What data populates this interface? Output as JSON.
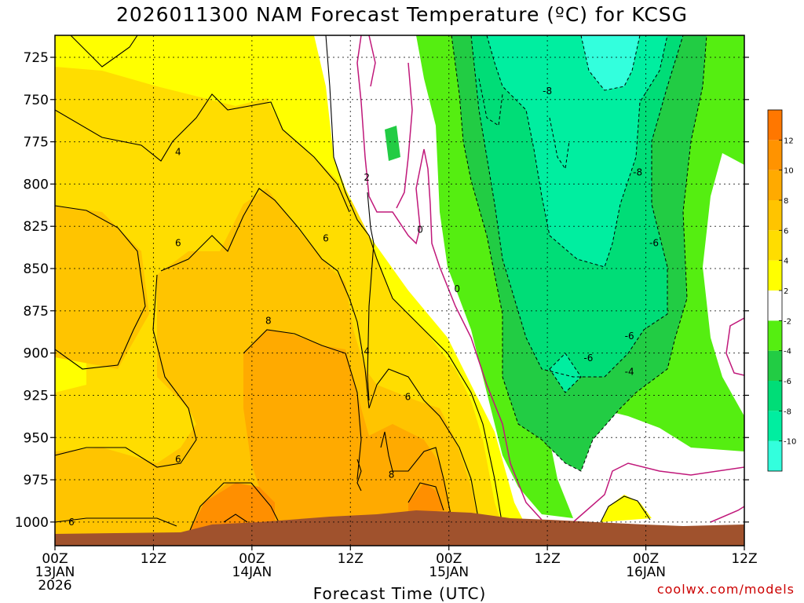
{
  "title": "2026011300 NAM Forecast Temperature (ºC) for KCSG",
  "credit": "coolwx.com/models",
  "chart_data": {
    "type": "heatmap",
    "title": "2026011300 NAM Forecast Temperature (ºC) for KCSG",
    "xlabel": "Forecast Time (UTC)",
    "ylabel": "",
    "x_range_hours": [
      0,
      84
    ],
    "y_range_hpa": [
      712,
      1014
    ],
    "y_ticks": [
      725,
      750,
      775,
      800,
      825,
      850,
      875,
      900,
      925,
      950,
      975,
      1000
    ],
    "x_ticks": [
      {
        "hour": 0,
        "lines": [
          "00Z",
          "13JAN",
          "2026"
        ]
      },
      {
        "hour": 12,
        "lines": [
          "12Z"
        ]
      },
      {
        "hour": 24,
        "lines": [
          "00Z",
          "14JAN"
        ]
      },
      {
        "hour": 36,
        "lines": [
          "12Z"
        ]
      },
      {
        "hour": 48,
        "lines": [
          "00Z",
          "15JAN"
        ]
      },
      {
        "hour": 60,
        "lines": [
          "12Z"
        ]
      },
      {
        "hour": 72,
        "lines": [
          "00Z",
          "16JAN"
        ]
      },
      {
        "hour": 84,
        "lines": [
          "12Z"
        ]
      }
    ],
    "grid": true,
    "colorbar": {
      "levels": [
        -12,
        -10,
        -8,
        -6,
        -4,
        -2,
        2,
        4,
        6,
        8,
        10,
        12,
        14
      ],
      "labels": [
        "-10",
        "-8",
        "-6",
        "-4",
        "-2",
        "2",
        "4",
        "6",
        "8",
        "10",
        "12"
      ],
      "colors": [
        "#33ffdd",
        "#00eea0",
        "#00dd77",
        "#22cc44",
        "#55ee11",
        "#ffffff",
        "#ffff00",
        "#ffdd00",
        "#ffc400",
        "#ffaa00",
        "#ff9300",
        "#ff7700"
      ]
    },
    "contour_labels": [
      {
        "text": "4",
        "hour": 15.0,
        "p": 781
      },
      {
        "text": "2",
        "hour": 38.0,
        "p": 796
      },
      {
        "text": "6",
        "hour": 15.0,
        "p": 835
      },
      {
        "text": "6",
        "hour": 33.0,
        "p": 832
      },
      {
        "text": "0",
        "hour": 44.5,
        "p": 827
      },
      {
        "text": "0",
        "hour": 49.0,
        "p": 862
      },
      {
        "text": "8",
        "hour": 26.0,
        "p": 881
      },
      {
        "text": "4",
        "hour": 38.0,
        "p": 899
      },
      {
        "text": "6",
        "hour": 43.0,
        "p": 926
      },
      {
        "text": "6",
        "hour": 15.0,
        "p": 963
      },
      {
        "text": "8",
        "hour": 41.0,
        "p": 972
      },
      {
        "text": "6",
        "hour": 2.0,
        "p": 1000
      },
      {
        "text": "-8",
        "hour": 60.0,
        "p": 745
      },
      {
        "text": "-8",
        "hour": 71.0,
        "p": 793
      },
      {
        "text": "-6",
        "hour": 73.0,
        "p": 835
      },
      {
        "text": "-6",
        "hour": 70.0,
        "p": 890
      },
      {
        "text": "-6",
        "hour": 65.0,
        "p": 903
      },
      {
        "text": "-4",
        "hour": 70.0,
        "p": 911
      }
    ]
  }
}
